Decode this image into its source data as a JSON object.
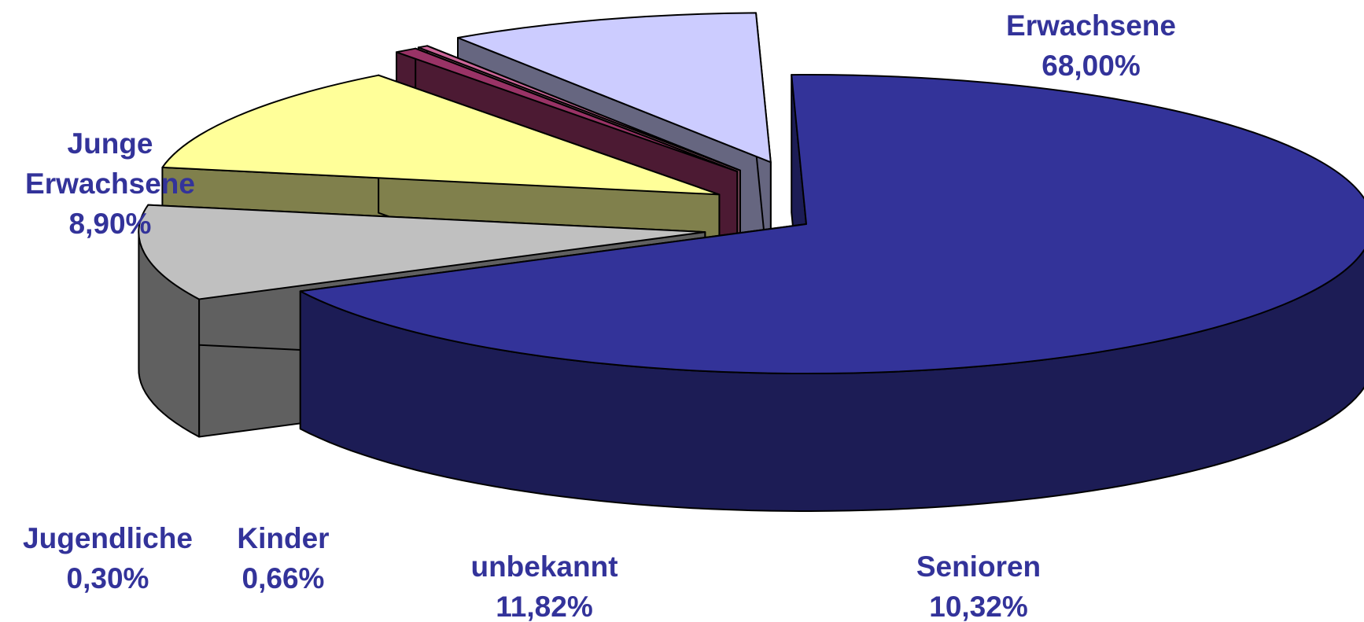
{
  "chart_data": {
    "type": "pie",
    "style": "3d-exploded",
    "slices": [
      {
        "name": "Erwachsene",
        "label_lines": [
          "Erwachsene"
        ],
        "pct_label": "68,00%",
        "value": 68.0,
        "top_color": "#333399",
        "side_color": "#1c1c55",
        "exploded": false
      },
      {
        "name": "Senioren",
        "label_lines": [
          "Senioren"
        ],
        "pct_label": "10,32%",
        "value": 10.32,
        "top_color": "#c0c0c0",
        "side_color": "#606060",
        "exploded": true
      },
      {
        "name": "unbekannt",
        "label_lines": [
          "unbekannt"
        ],
        "pct_label": "11,82%",
        "value": 11.82,
        "top_color": "#ffff99",
        "side_color": "#80804c",
        "exploded": true
      },
      {
        "name": "Kinder",
        "label_lines": [
          "Kinder"
        ],
        "pct_label": "0,66%",
        "value": 0.66,
        "top_color": "#993366",
        "side_color": "#4c1a33",
        "exploded": true
      },
      {
        "name": "Jugendliche",
        "label_lines": [
          "Jugendliche"
        ],
        "pct_label": "0,30%",
        "value": 0.3,
        "top_color": "#cc6699",
        "side_color": "#804c60",
        "exploded": true
      },
      {
        "name": "Junge Erwachsene",
        "label_lines": [
          "Junge",
          "Erwachsene"
        ],
        "pct_label": "8,90%",
        "value": 8.9,
        "top_color": "#ccccff",
        "side_color": "#666680",
        "exploded": true
      }
    ],
    "label_color": "#33339a"
  }
}
